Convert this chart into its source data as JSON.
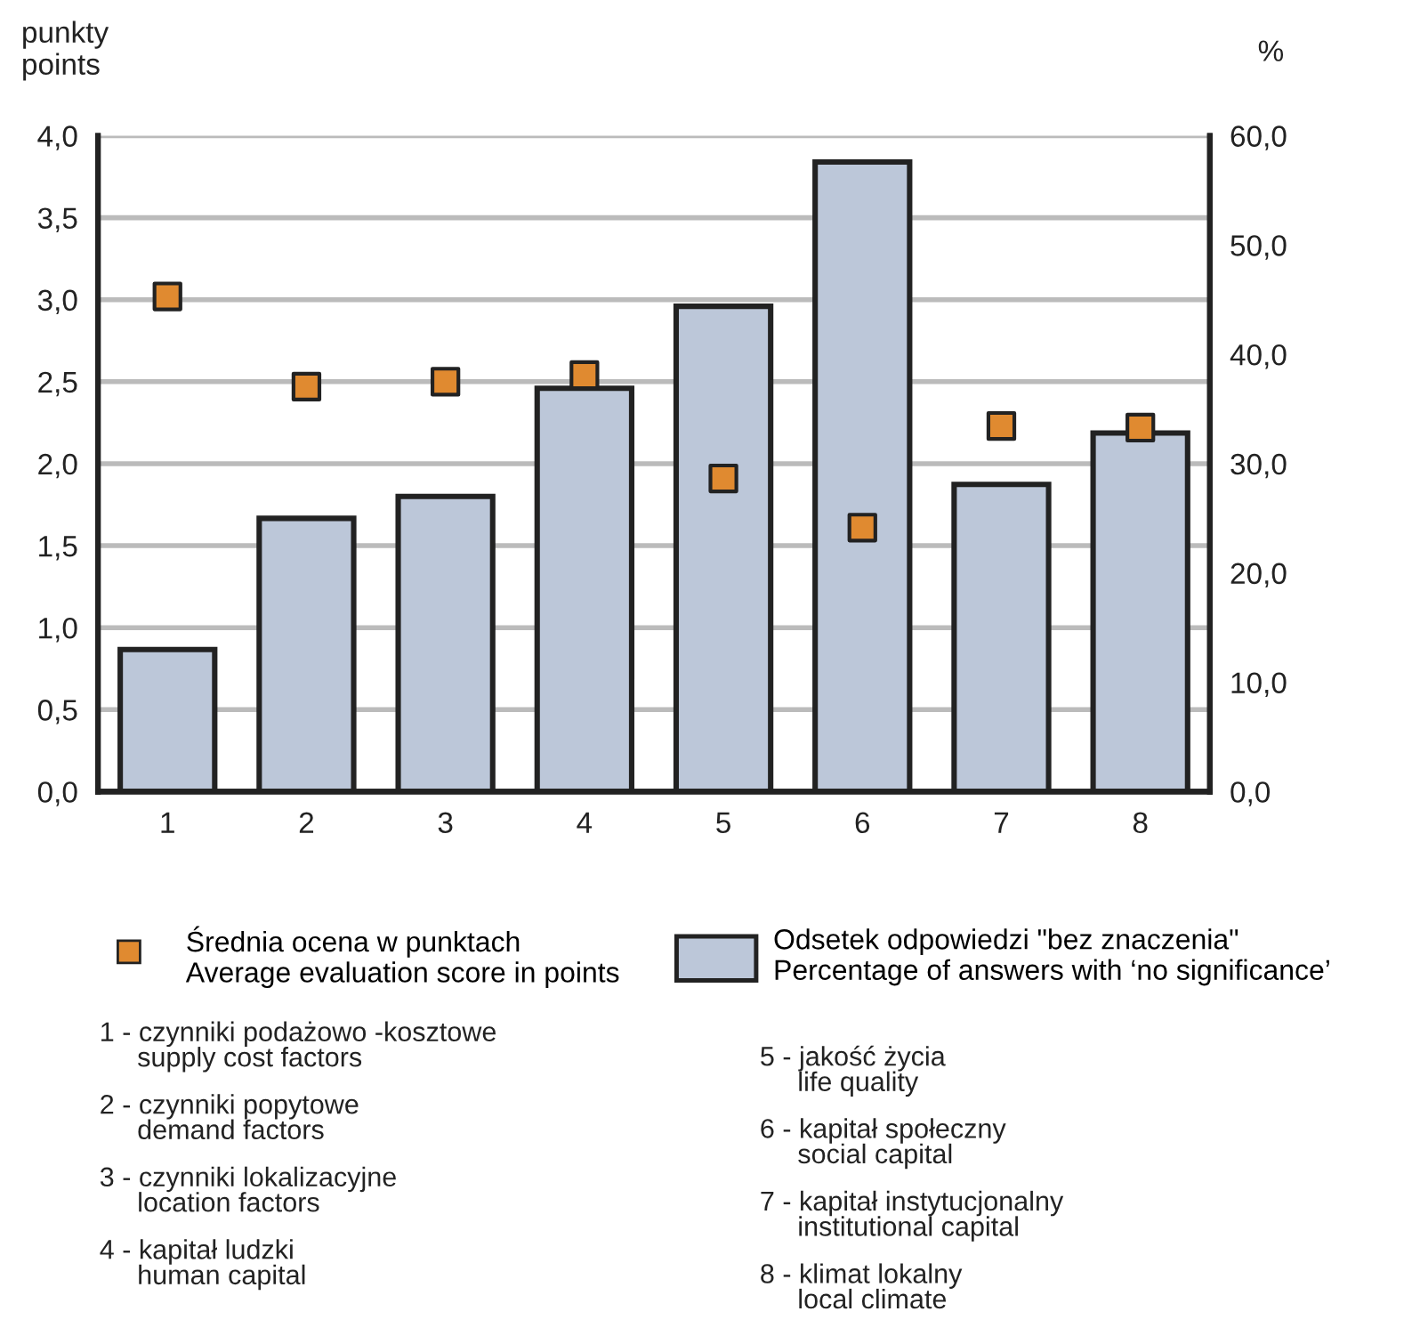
{
  "chart_data": {
    "type": "bar",
    "ylabel": "punkty\npoints",
    "y2label": "%",
    "categories": [
      "1",
      "2",
      "3",
      "4",
      "5",
      "6",
      "7",
      "8"
    ],
    "series": [
      {
        "name": "Średnia ocena w punktach\nAverage evaluation score in points",
        "type": "scatter",
        "color": "#e08a30",
        "marker": "square",
        "values": [
          3.02,
          2.47,
          2.5,
          2.54,
          1.91,
          1.61,
          2.23,
          2.22
        ]
      },
      {
        "name": "Odsetek odpowiedzi \"bez znaczenia\"\nPercentage of answers with ‘no significance’",
        "axis": "y2",
        "color": "#bcc7d9",
        "values": [
          13.0,
          25.0,
          27.0,
          36.9,
          44.4,
          57.6,
          28.1,
          32.8
        ]
      }
    ],
    "ylim": [
      0,
      4
    ],
    "yticks": [
      {
        "value": 0,
        "label": "0,0"
      },
      {
        "value": 0.5,
        "label": "0,5"
      },
      {
        "value": 1,
        "label": "1,0"
      },
      {
        "value": 1.5,
        "label": "1,5"
      },
      {
        "value": 2,
        "label": "2,0"
      },
      {
        "value": 2.5,
        "label": "2,5"
      },
      {
        "value": 3,
        "label": "3,0"
      },
      {
        "value": 3.5,
        "label": "3,5"
      },
      {
        "value": 4,
        "label": "4,0"
      }
    ],
    "y2lim": [
      0,
      60
    ],
    "y2ticks": [
      {
        "value": 0,
        "label": "0,0"
      },
      {
        "value": 10,
        "label": "10,0"
      },
      {
        "value": 20,
        "label": "20,0"
      },
      {
        "value": 30,
        "label": "30,0"
      },
      {
        "value": 40,
        "label": "40,0"
      },
      {
        "value": 50,
        "label": "50,0"
      },
      {
        "value": 60,
        "label": "60,0"
      }
    ],
    "grid": "y",
    "legend": "bottom",
    "annotations": [
      "1 - czynniki podażowo -kosztowe\n     supply cost factors",
      "2 - czynniki popytowe\n     demand factors",
      "3 - czynniki lokalizacyjne\n     location factors",
      "4 - kapitał ludzki\n     human capital",
      "5 - jakość życia\n     life quality",
      "6 - kapitał społeczny\n     social capital",
      "7 - kapitał instytucjonalny\n     institutional capital",
      "8 - klimat lokalny\n     local climate"
    ]
  }
}
